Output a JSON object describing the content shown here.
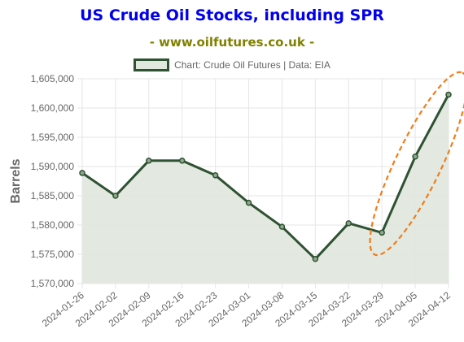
{
  "title": "US Crude Oil Stocks, including SPR",
  "subtitle": "- www.oilfutures.co.uk -",
  "colors": {
    "title": "#0000ee",
    "subtitle": "#808000",
    "line": "#2f5233",
    "fill": "#e1e8de",
    "highlight": "#f07c1a",
    "grid": "#e6e6e6",
    "tick_text": "#666666"
  },
  "chart_data": {
    "type": "line",
    "ylabel": "Barrels",
    "categories": [
      "2024-01-26",
      "2024-02-02",
      "2024-02-09",
      "2024-02-16",
      "2024-02-23",
      "2024-03-01",
      "2024-03-08",
      "2024-03-15",
      "2024-03-22",
      "2024-03-29",
      "2024-04-05",
      "2024-04-12"
    ],
    "series": [
      {
        "name": "Chart: Crude Oil Futures | Data: EIA",
        "values": [
          1588900,
          1585000,
          1591000,
          1591000,
          1588500,
          1583800,
          1579700,
          1574200,
          1580300,
          1578700,
          1591700,
          1602300
        ]
      }
    ],
    "ylim": [
      1570000,
      1605000
    ],
    "yticks": [
      1570000,
      1575000,
      1580000,
      1585000,
      1590000,
      1595000,
      1600000,
      1605000
    ],
    "ytick_labels": [
      "1,570,000",
      "1,575,000",
      "1,580,000",
      "1,585,000",
      "1,590,000",
      "1,595,000",
      "1,600,000",
      "1,605,000"
    ],
    "grid": true,
    "filled": true,
    "legend_position": "top",
    "annotation": "orange dashed ellipse around the final three points (2024-03-29 to 2024-04-12)"
  }
}
